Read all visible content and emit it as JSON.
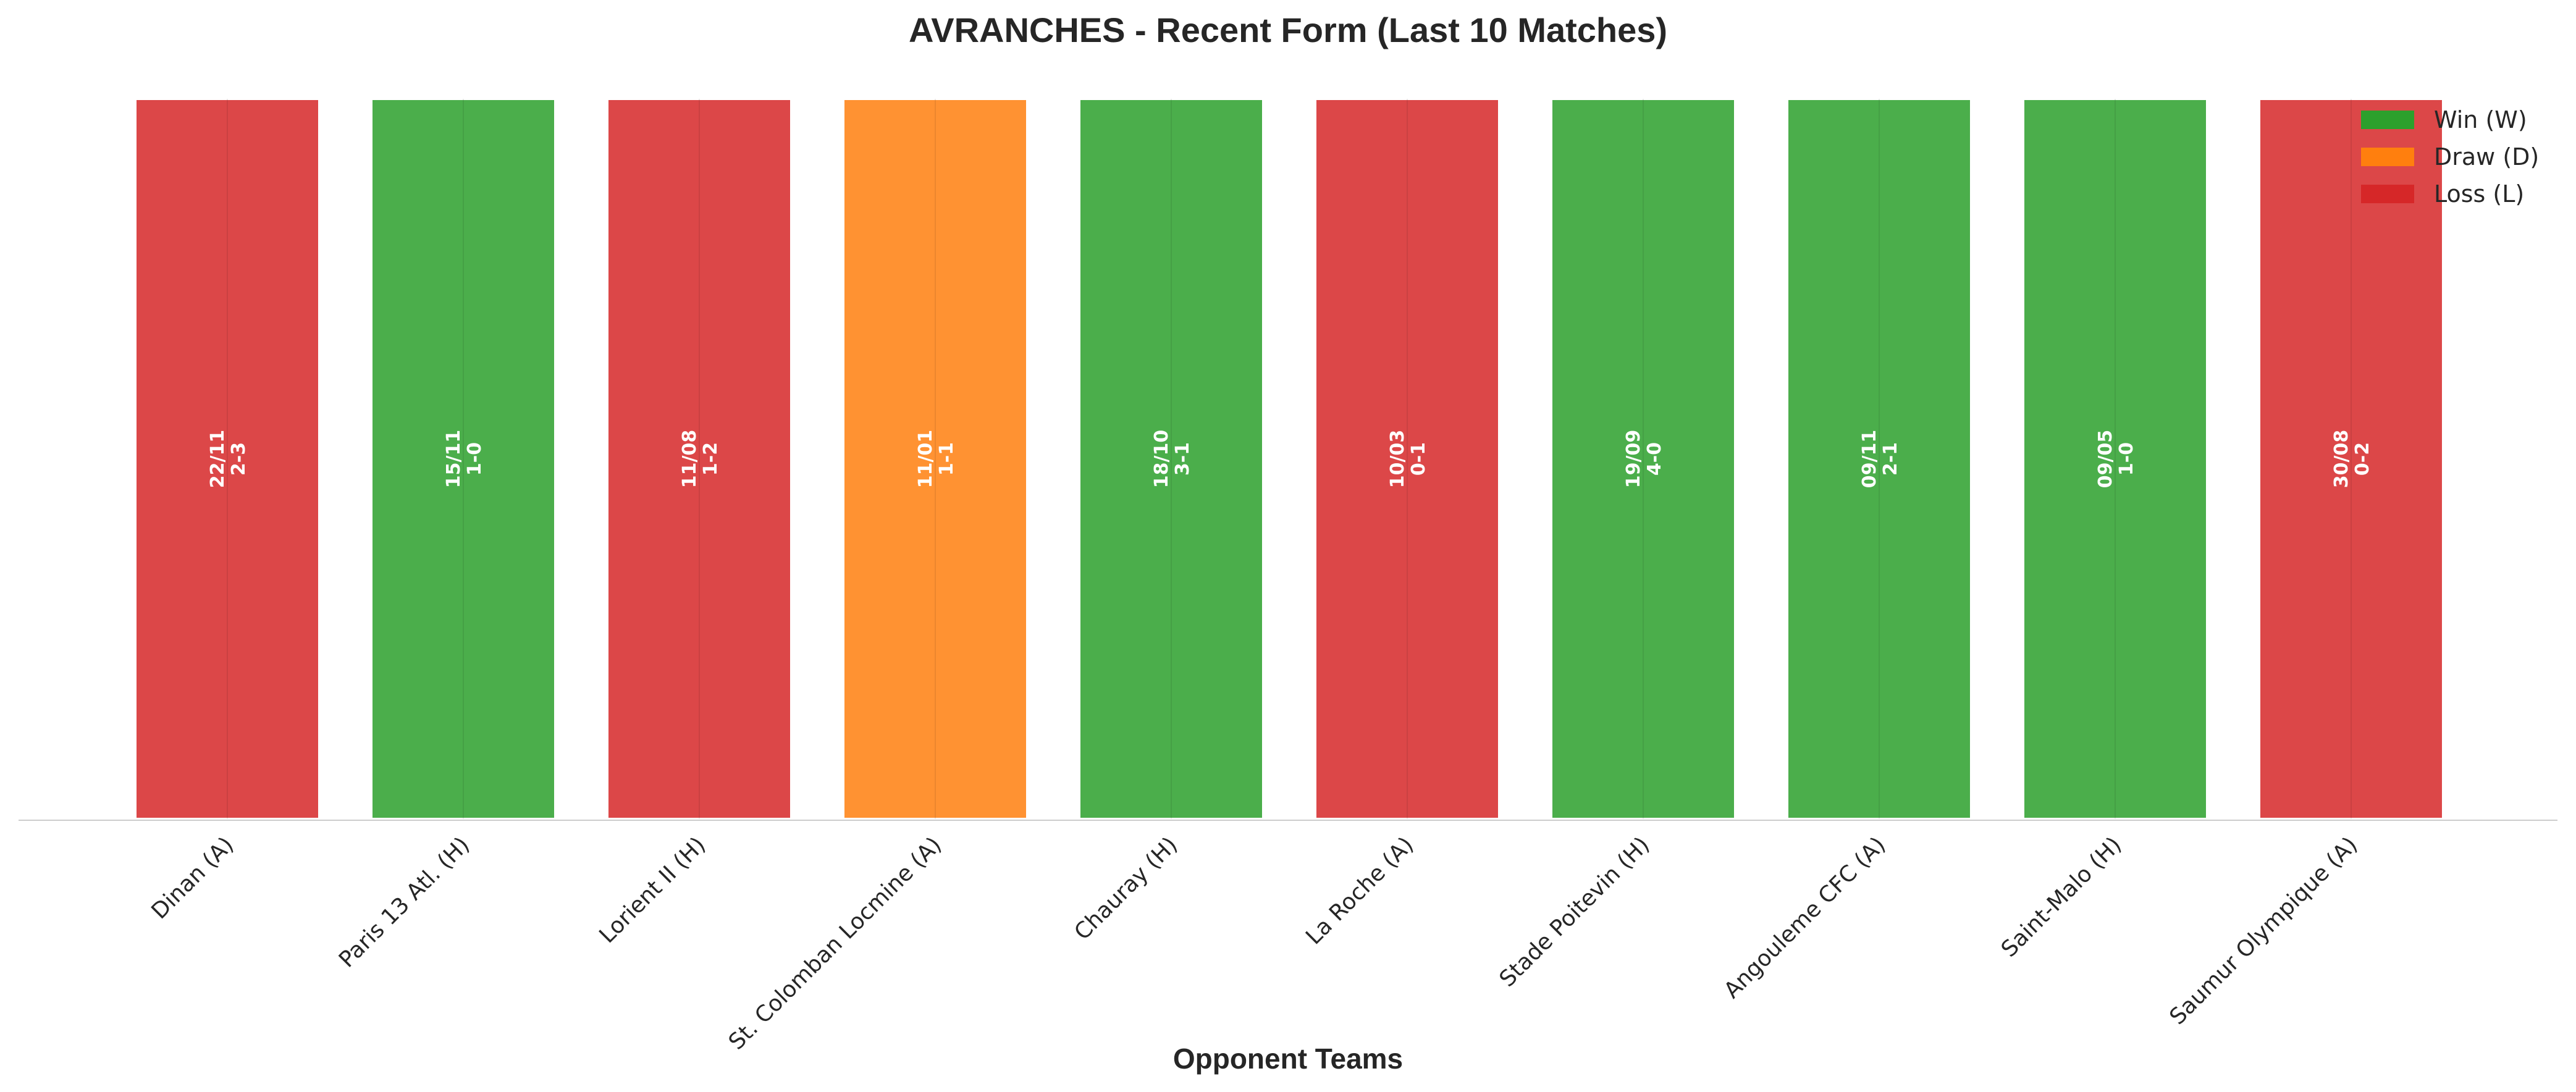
{
  "chart_data": {
    "type": "bar",
    "title": "AVRANCHES - Recent Form (Last 10 Matches)",
    "xlabel": "Opponent Teams",
    "ylabel": "",
    "categories": [
      "Dinan (A)",
      "Paris 13 Atl. (H)",
      "Lorient II (H)",
      "St. Colomban Locmine (A)",
      "Chauray (H)",
      "La Roche (A)",
      "Stade Poitevin (H)",
      "Angouleme CFC (A)",
      "Saint-Malo (H)",
      "Saumur Olympique (A)"
    ],
    "values": [
      1,
      1,
      1,
      1,
      1,
      1,
      1,
      1,
      1,
      1
    ],
    "results": [
      "L",
      "W",
      "L",
      "D",
      "W",
      "L",
      "W",
      "W",
      "W",
      "L"
    ],
    "dates": [
      "22/11",
      "15/11",
      "11/08",
      "11/01",
      "18/10",
      "10/03",
      "19/09",
      "09/11",
      "09/05",
      "30/08"
    ],
    "scores": [
      "2-3",
      "1-0",
      "1-2",
      "1-1",
      "3-1",
      "0-1",
      "4-0",
      "2-1",
      "1-0",
      "0-2"
    ],
    "ylim": [
      0,
      1.05
    ],
    "grid": false,
    "legend": {
      "placement": "top-right",
      "entries": [
        {
          "key": "W",
          "label": "Win (W)",
          "color": "#2ca02c"
        },
        {
          "key": "D",
          "label": "Draw (D)",
          "color": "#ff7f0e"
        },
        {
          "key": "L",
          "label": "Loss (L)",
          "color": "#d62728"
        }
      ]
    },
    "colors": {
      "W": "#2ca02c",
      "D": "#ff7f0e",
      "L": "#d62728"
    }
  }
}
